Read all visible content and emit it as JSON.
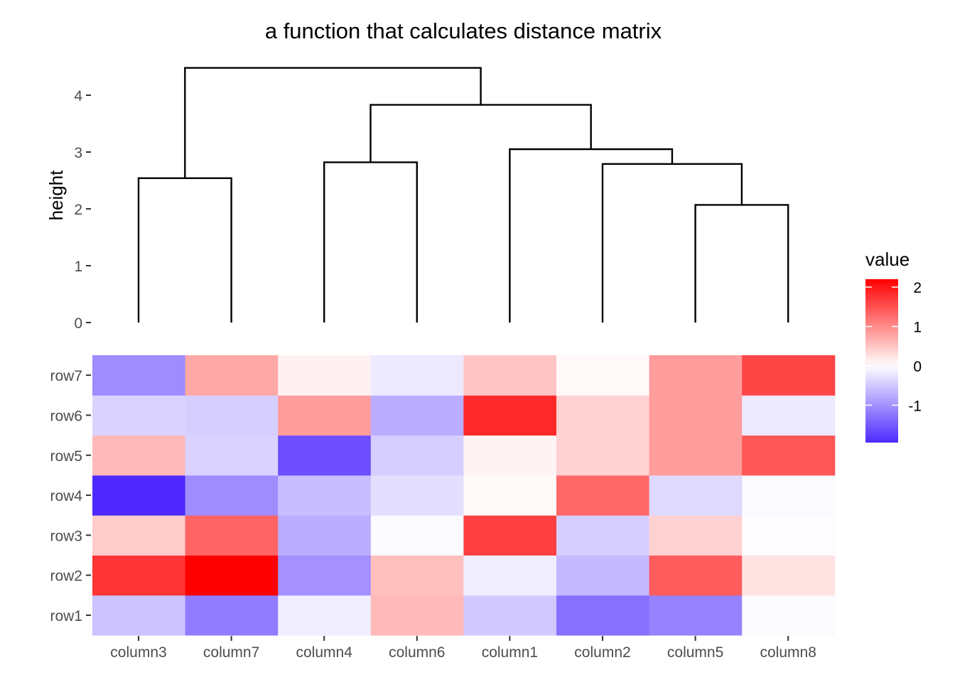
{
  "chart_data": {
    "type": "heatmap",
    "title": "a function that calculates distance matrix",
    "dendrogram": {
      "ylabel": "height",
      "ylim": [
        0,
        4.5
      ],
      "yticks": [
        0,
        1,
        2,
        3,
        4
      ],
      "leaves": [
        "column3",
        "column7",
        "column4",
        "column6",
        "column1",
        "column2",
        "column5",
        "column8"
      ],
      "merges": [
        {
          "left": "column5",
          "right": "column8",
          "height": 2.07
        },
        {
          "left": "column3",
          "right": "column7",
          "height": 2.54
        },
        {
          "left": "column2",
          "right": "m1",
          "height": 2.79
        },
        {
          "left": "column4",
          "right": "column6",
          "height": 2.82
        },
        {
          "left": "column1",
          "right": "m3",
          "height": 3.05
        },
        {
          "left": "m4",
          "right": "m5",
          "height": 3.83
        },
        {
          "left": "m2",
          "right": "m6",
          "height": 4.48
        }
      ]
    },
    "heatmap": {
      "columns": [
        "column3",
        "column7",
        "column4",
        "column6",
        "column1",
        "column2",
        "column5",
        "column8"
      ],
      "rows": [
        "row1",
        "row2",
        "row3",
        "row4",
        "row5",
        "row6",
        "row7"
      ],
      "values": [
        [
          -0.55,
          -1.2,
          -0.15,
          0.6,
          -0.5,
          -1.3,
          -1.15,
          -0.05
        ],
        [
          1.75,
          2.2,
          -1.0,
          0.55,
          -0.15,
          -0.65,
          1.4,
          0.25
        ],
        [
          0.45,
          1.35,
          -0.75,
          -0.05,
          1.65,
          -0.45,
          0.4,
          -0.02
        ],
        [
          -1.95,
          -1.05,
          -0.6,
          -0.3,
          0.05,
          1.3,
          -0.35,
          -0.05
        ],
        [
          0.6,
          -0.4,
          -1.6,
          -0.45,
          0.1,
          0.4,
          0.85,
          1.45
        ],
        [
          -0.4,
          -0.45,
          0.85,
          -0.75,
          1.85,
          0.4,
          0.85,
          -0.2
        ],
        [
          -1.05,
          0.75,
          0.12,
          -0.2,
          0.5,
          0.05,
          0.85,
          1.6
        ]
      ]
    },
    "legend": {
      "title": "value",
      "ticks": [
        2,
        1,
        0,
        -1
      ],
      "range": [
        -1.95,
        2.2
      ],
      "low_color": "#4d29ff",
      "mid_color": "#ffffff",
      "high_color": "#ff0000"
    }
  }
}
